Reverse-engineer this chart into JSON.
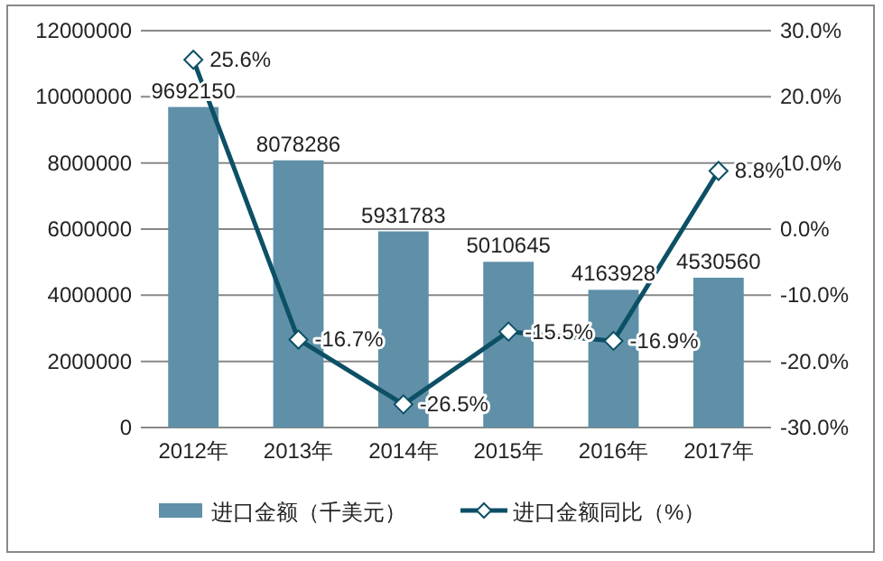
{
  "chart_data": {
    "type": "bar",
    "categories": [
      "2012年",
      "2013年",
      "2014年",
      "2015年",
      "2016年",
      "2017年"
    ],
    "series": [
      {
        "name": "进口金额（千美元）",
        "color": "#5f90a8",
        "values": [
          9692150,
          8078286,
          5931783,
          5010645,
          4163928,
          4530560
        ],
        "value_labels": [
          "9692150",
          "8078286",
          "5931783",
          "5010645",
          "4163928",
          "4530560"
        ]
      },
      {
        "name": "进口金额同比（%）",
        "type": "line",
        "axis": "y2",
        "color": "#0d5066",
        "marker": "diamond",
        "values": [
          25.6,
          -16.7,
          -26.5,
          -15.5,
          -16.9,
          8.8
        ],
        "value_labels": [
          "25.6%",
          "-16.7%",
          "-26.5%",
          "-15.5%",
          "-16.9%",
          "8.8%"
        ]
      }
    ],
    "ylim": [
      0,
      12000000
    ],
    "yticks": [
      0,
      2000000,
      4000000,
      6000000,
      8000000,
      10000000,
      12000000
    ],
    "y2lim": [
      -30,
      30
    ],
    "y2ticks": [
      {
        "value": -30,
        "label": "-30.0%"
      },
      {
        "value": -20,
        "label": "-20.0%"
      },
      {
        "value": -10,
        "label": "-10.0%"
      },
      {
        "value": 0,
        "label": "0.0%"
      },
      {
        "value": 10,
        "label": "10.0%"
      },
      {
        "value": 20,
        "label": "20.0%"
      },
      {
        "value": 30,
        "label": "30.0%"
      }
    ],
    "grid": "y",
    "legend": "bottom"
  }
}
